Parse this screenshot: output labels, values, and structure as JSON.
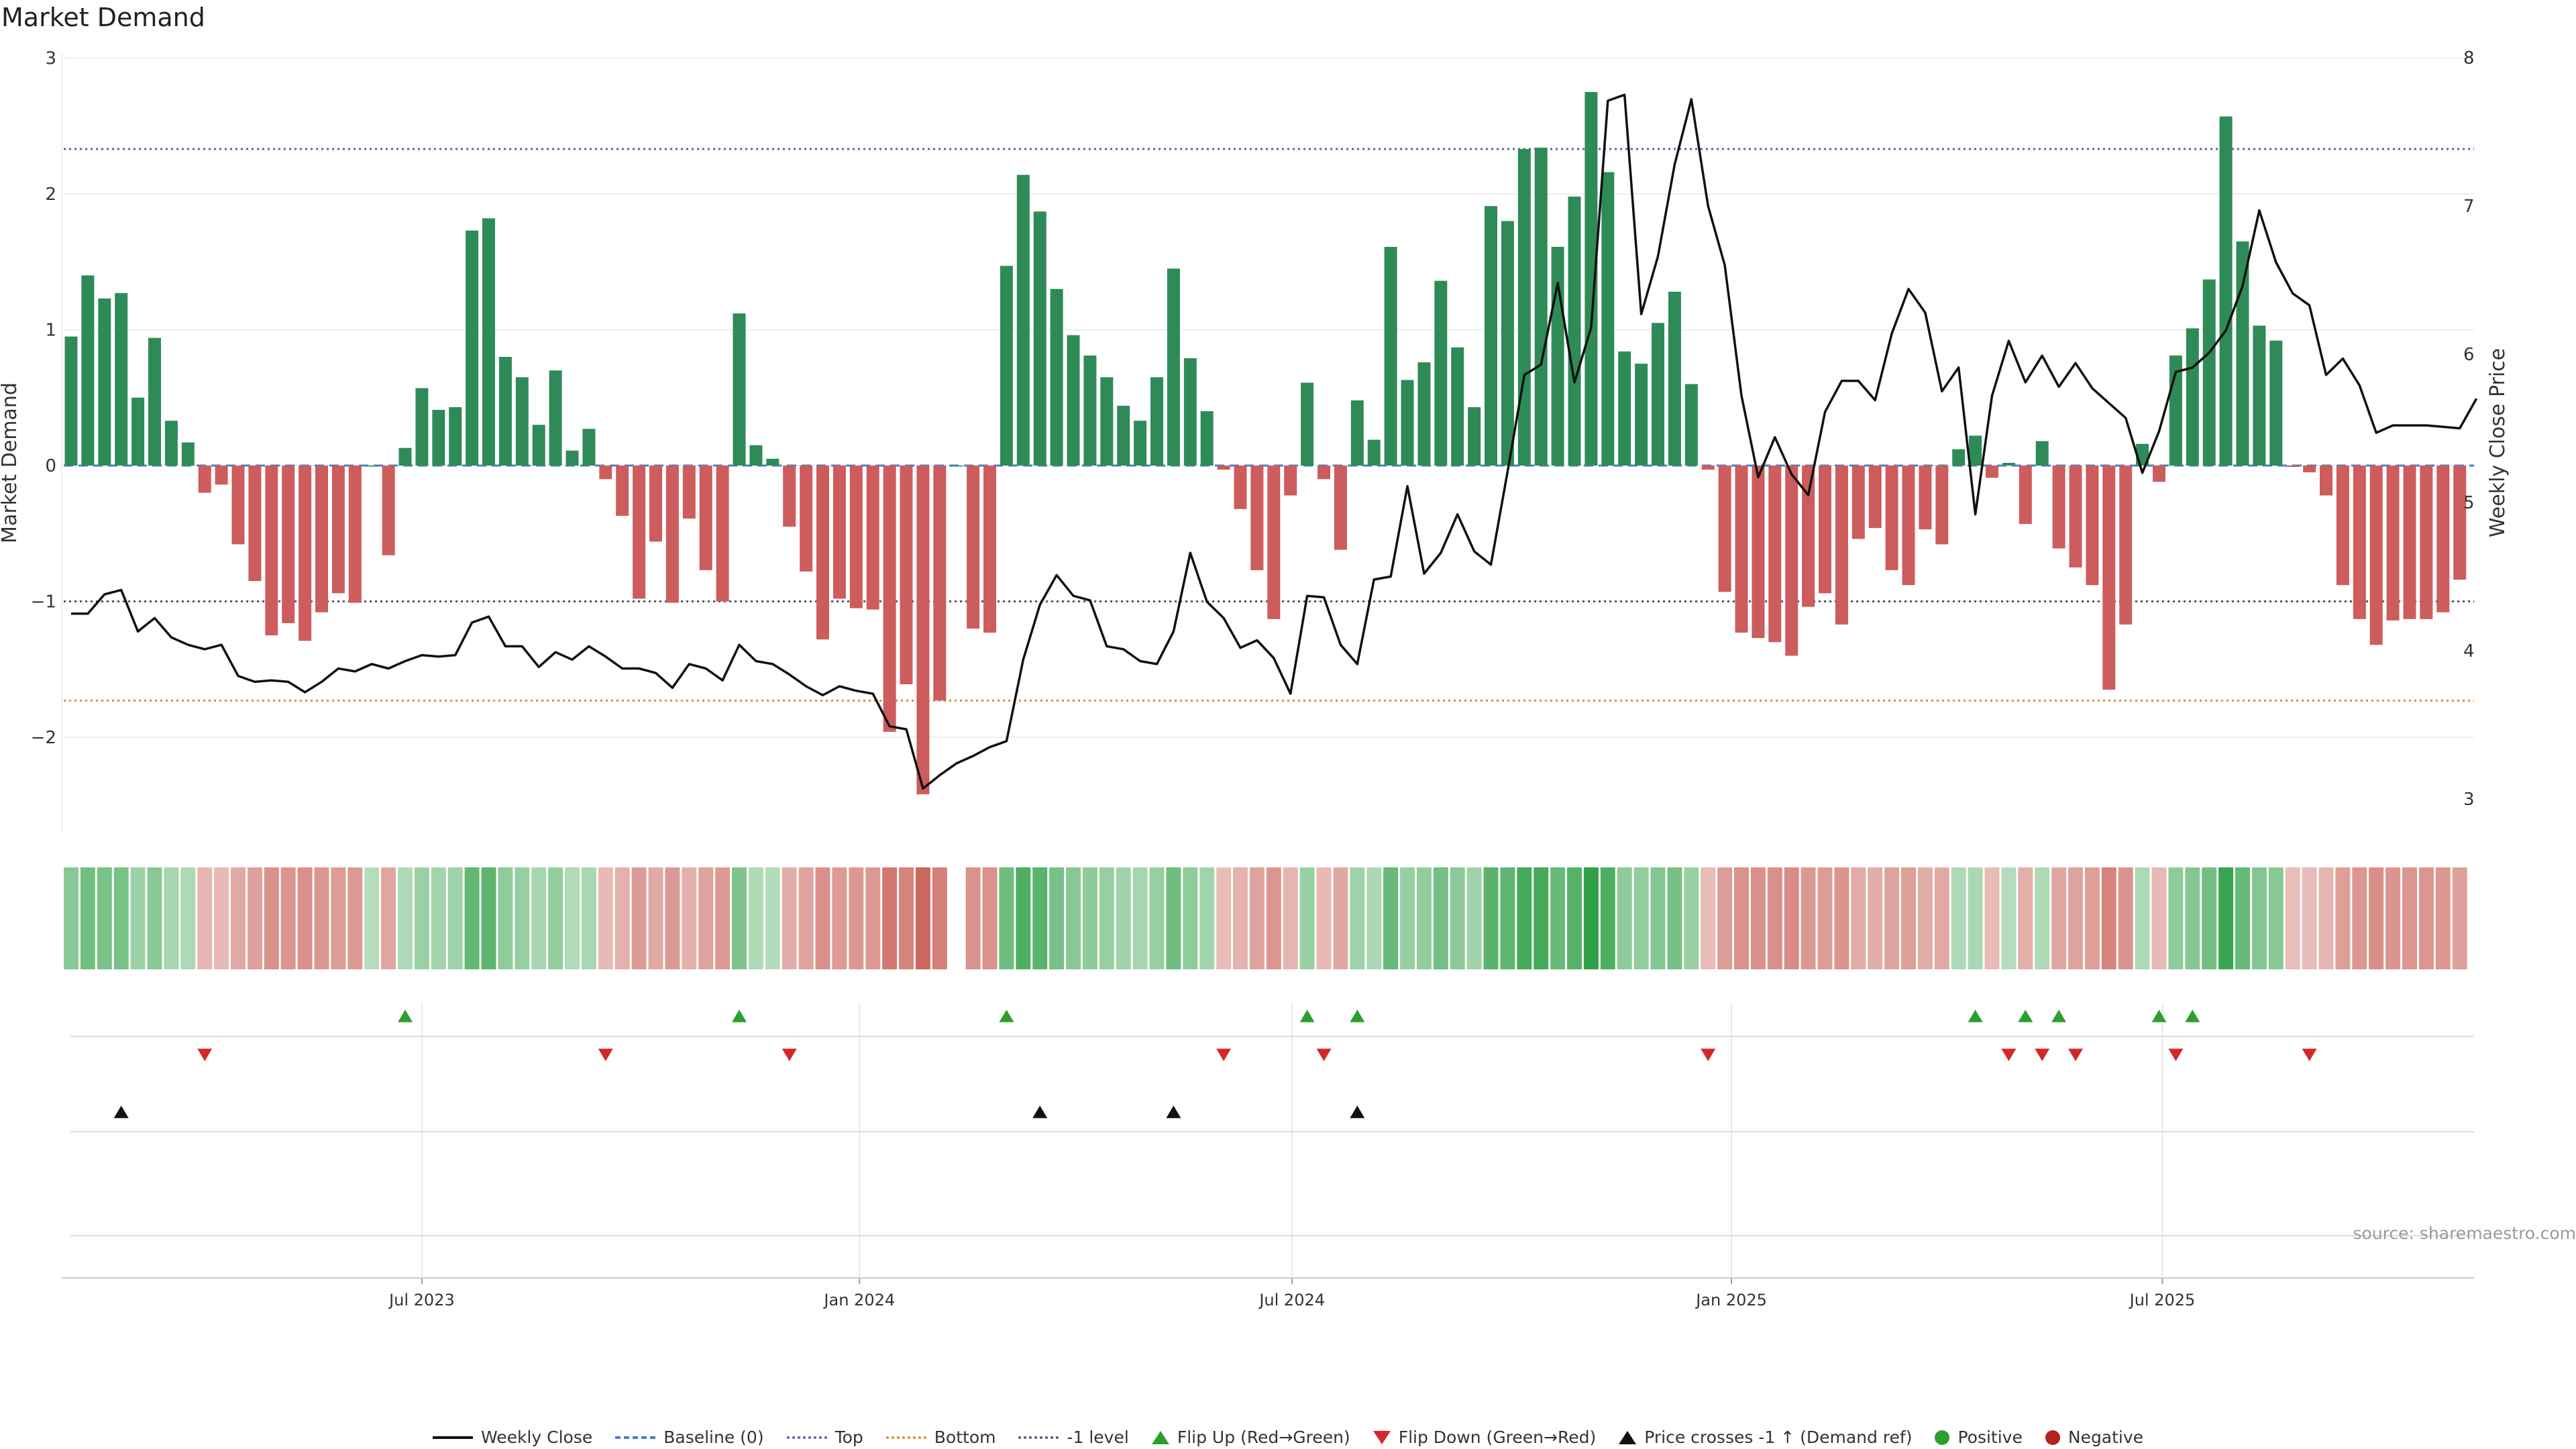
{
  "title": "Market Demand",
  "source": "source: sharemaestro.com",
  "colors": {
    "positive": "#2e8b57",
    "negative": "#cd5c5c",
    "price_line": "#111111",
    "top_line": "#5b5bc0",
    "bottom_line": "#e08a2a",
    "level_line": "#555577",
    "baseline": "#4a7fc0",
    "flip_up": "#2ca02c",
    "flip_down": "#d62728",
    "cross_marker": "#111111",
    "legend_positive": "#2ca02c",
    "legend_negative": "#b22222"
  },
  "legend": [
    {
      "label": "Weekly Close",
      "icon": "solid-line"
    },
    {
      "label": "Baseline (0)",
      "icon": "dashed-line"
    },
    {
      "label": "Top",
      "icon": "dotted-line"
    },
    {
      "label": "Bottom",
      "icon": "dotted-line"
    },
    {
      "label": "-1 level",
      "icon": "dotted-line"
    },
    {
      "label": "Flip Up (Red→Green)",
      "icon": "triangle-up"
    },
    {
      "label": "Flip Down (Green→Red)",
      "icon": "triangle-down"
    },
    {
      "label": "Price crosses -1 ↑ (Demand ref)",
      "icon": "triangle-up"
    },
    {
      "label": "Positive",
      "icon": "dot"
    },
    {
      "label": "Negative",
      "icon": "dot"
    }
  ],
  "chart_data": {
    "type": "bar",
    "title": "Market Demand",
    "ylabel": "Market Demand",
    "y2label": "Weekly Close Price",
    "ylim": [
      -2.7,
      3.0
    ],
    "y2lim": [
      2.9,
      8.0
    ],
    "yticks": [
      3,
      2,
      1,
      0,
      -1,
      -2
    ],
    "yticklabels": [
      "3",
      "2",
      "1",
      "0",
      "−1",
      "−2"
    ],
    "y2ticks": [
      8,
      7,
      6,
      5,
      4,
      3
    ],
    "x_axis": {
      "start_week_index": 0,
      "ticks": [
        {
          "label": "Jul 2023",
          "week": 21
        },
        {
          "label": "Jan 2024",
          "week": 47.2
        },
        {
          "label": "Jul 2024",
          "week": 73.1
        },
        {
          "label": "Jan 2025",
          "week": 99.4
        },
        {
          "label": "Jul 2025",
          "week": 125.2
        }
      ]
    },
    "reference_lines": {
      "top": 2.33,
      "bottom": -1.73,
      "minus_one_level": -1.0,
      "baseline": 0
    },
    "series": [
      {
        "name": "Market Demand",
        "kind": "bar",
        "values": [
          0.95,
          1.4,
          1.23,
          1.27,
          0.5,
          0.94,
          0.33,
          0.17,
          -0.2,
          -0.14,
          -0.58,
          -0.85,
          -1.25,
          -1.16,
          -1.29,
          -1.08,
          -0.94,
          -1.01,
          -0.0,
          -0.66,
          0.13,
          0.57,
          0.41,
          0.43,
          1.73,
          1.82,
          0.8,
          0.65,
          0.3,
          0.7,
          0.11,
          0.27,
          -0.1,
          -0.37,
          -0.98,
          -0.56,
          -1.01,
          -0.39,
          -0.77,
          -1.0,
          1.12,
          0.15,
          0.05,
          -0.45,
          -0.78,
          -1.28,
          -0.98,
          -1.05,
          -1.06,
          -1.96,
          -1.61,
          -2.42,
          -1.73,
          0.0,
          -1.2,
          -1.23,
          1.47,
          2.14,
          1.87,
          1.3,
          0.96,
          0.81,
          0.65,
          0.44,
          0.33,
          0.65,
          1.45,
          0.79,
          0.4,
          -0.03,
          -0.32,
          -0.77,
          -1.13,
          -0.22,
          0.61,
          -0.1,
          -0.62,
          0.48,
          0.19,
          1.61,
          0.63,
          0.76,
          1.36,
          0.87,
          0.43,
          1.91,
          1.8,
          2.33,
          2.34,
          1.61,
          1.98,
          2.75,
          2.16,
          0.84,
          0.75,
          1.05,
          1.28,
          0.6,
          -0.03,
          -0.93,
          -1.23,
          -1.27,
          -1.3,
          -1.4,
          -1.04,
          -0.94,
          -1.17,
          -0.54,
          -0.46,
          -0.77,
          -0.88,
          -0.47,
          -0.58,
          0.12,
          0.22,
          -0.09,
          0.02,
          -0.43,
          0.18,
          -0.61,
          -0.75,
          -0.88,
          -1.65,
          -1.17,
          0.16,
          -0.12,
          0.81,
          1.01,
          1.37,
          2.57,
          1.65,
          1.03,
          0.92,
          -0.01,
          -0.05,
          -0.22,
          -0.88,
          -1.13,
          -1.32,
          -1.14,
          -1.13,
          -1.13,
          -1.08,
          -0.84
        ]
      },
      {
        "name": "Weekly Close",
        "kind": "line",
        "axis": "right",
        "values": [
          4.25,
          4.25,
          4.38,
          4.41,
          4.13,
          4.22,
          4.09,
          4.04,
          4.01,
          4.04,
          3.83,
          3.79,
          3.8,
          3.79,
          3.72,
          3.79,
          3.88,
          3.86,
          3.91,
          3.88,
          3.93,
          3.97,
          3.96,
          3.97,
          4.19,
          4.23,
          4.03,
          4.03,
          3.89,
          3.99,
          3.94,
          4.03,
          3.96,
          3.88,
          3.88,
          3.85,
          3.75,
          3.91,
          3.88,
          3.8,
          4.04,
          3.93,
          3.91,
          3.84,
          3.76,
          3.7,
          3.76,
          3.73,
          3.71,
          3.49,
          3.47,
          3.07,
          3.16,
          3.24,
          3.29,
          3.35,
          3.39,
          3.94,
          4.31,
          4.51,
          4.37,
          4.34,
          4.03,
          4.01,
          3.93,
          3.91,
          4.13,
          4.66,
          4.33,
          4.22,
          4.02,
          4.07,
          3.95,
          3.71,
          4.37,
          4.36,
          4.04,
          3.91,
          4.48,
          4.5,
          5.11,
          4.52,
          4.66,
          4.92,
          4.67,
          4.58,
          5.21,
          5.86,
          5.93,
          6.48,
          5.81,
          6.18,
          7.71,
          7.75,
          6.27,
          6.66,
          7.28,
          7.72,
          7.0,
          6.6,
          5.72,
          5.17,
          5.44,
          5.19,
          5.05,
          5.61,
          5.82,
          5.82,
          5.69,
          6.14,
          6.44,
          6.28,
          5.75,
          5.91,
          4.92,
          5.72,
          6.09,
          5.81,
          5.99,
          5.78,
          5.94,
          5.77,
          5.67,
          5.57,
          5.2,
          5.48,
          5.88,
          5.91,
          6.01,
          6.16,
          6.46,
          6.97,
          6.62,
          6.41,
          6.33,
          5.86,
          5.97,
          5.79,
          5.47,
          5.52,
          5.52,
          5.52,
          5.51,
          5.5,
          5.7
        ]
      }
    ],
    "heat_strip": {
      "description": "weekly demand intensity strip, same values as Market Demand",
      "source_series": "Market Demand"
    },
    "event_rows": [
      {
        "name": "Flip Up (Red→Green)",
        "marker": "triangle-up",
        "weeks": [
          20,
          40,
          56,
          74,
          77,
          114,
          117,
          119,
          125,
          127
        ]
      },
      {
        "name": "Flip Down (Green→Red)",
        "marker": "triangle-down",
        "weeks": [
          8,
          32,
          43,
          69,
          75,
          98,
          116,
          118,
          120,
          126,
          134
        ]
      },
      {
        "name": "Price crosses -1 ↑ (Demand ref)",
        "marker": "triangle-up",
        "weeks": [
          3,
          58,
          66,
          77
        ]
      },
      {
        "name": "Positive / Negative",
        "marker": "dot",
        "weeks": []
      }
    ]
  }
}
